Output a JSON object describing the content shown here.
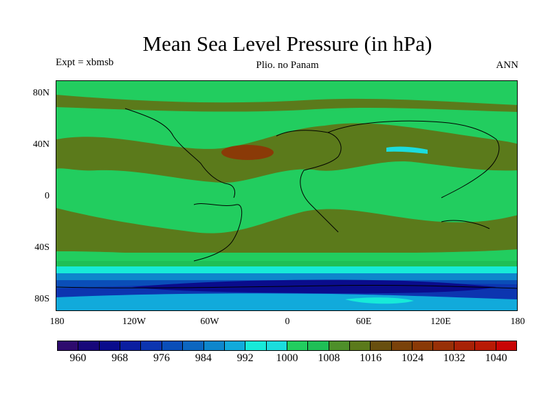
{
  "title": "Mean Sea Level Pressure (in hPa)",
  "left_label": "Expt = xbmsb",
  "center_label": "Plio. no Panam",
  "right_label": "ANN",
  "lat_labels": [
    "80N",
    "40N",
    "0",
    "40S",
    "80S"
  ],
  "lon_labels": [
    "180",
    "120W",
    "60W",
    "0",
    "60E",
    "120E",
    "180"
  ],
  "colorbar": {
    "colors": [
      "#2e0b6e",
      "#17087a",
      "#0a0c8c",
      "#0b1ea0",
      "#0c35b0",
      "#0a4eb8",
      "#0c66c0",
      "#0e86cc",
      "#11aadb",
      "#17ead8",
      "#1bdcdd",
      "#22cd5f",
      "#1fbf56",
      "#4e8f2a",
      "#5b7a1b",
      "#684f0f",
      "#7a420a",
      "#8a3a07",
      "#983007",
      "#a82206",
      "#b81a05",
      "#c80505"
    ],
    "labels": [
      "960",
      "968",
      "976",
      "984",
      "992",
      "1000",
      "1008",
      "1016",
      "1024",
      "1032",
      "1040"
    ]
  }
}
